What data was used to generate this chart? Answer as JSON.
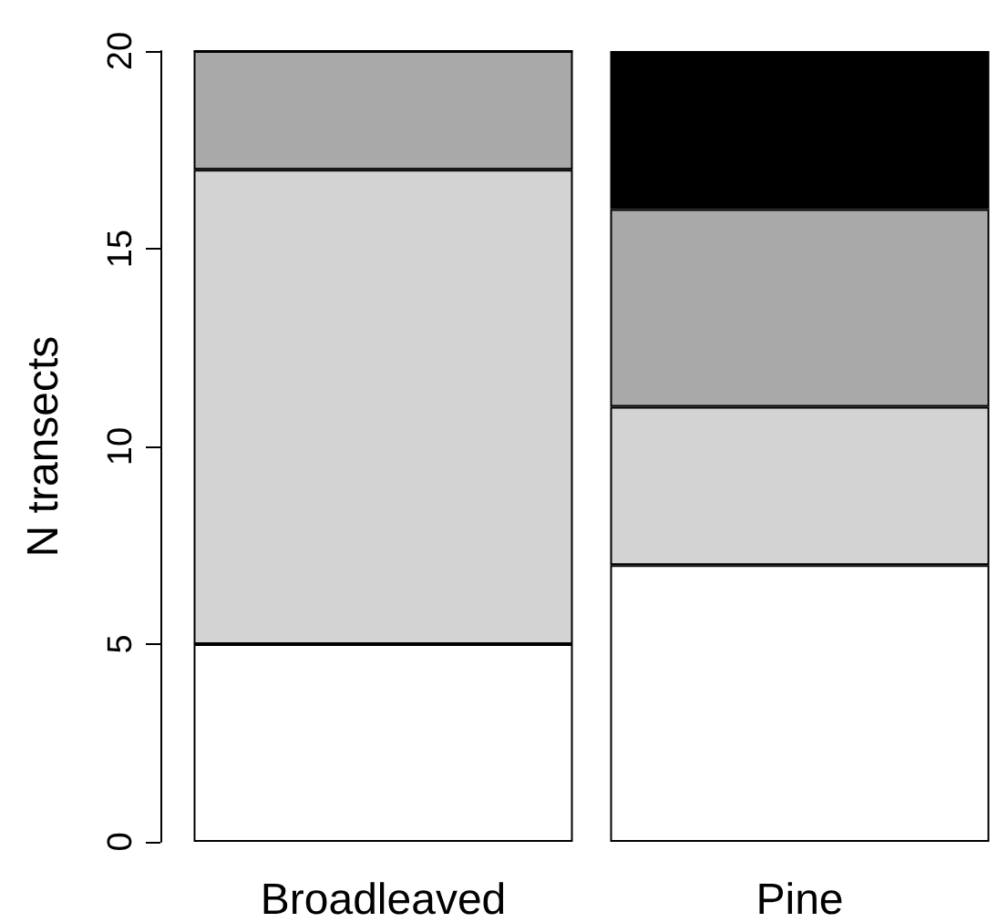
{
  "chart_data": {
    "type": "bar",
    "stacked": true,
    "ylabel": "N transects",
    "categories": [
      "Broadleaved",
      "Pine"
    ],
    "series": [
      {
        "color": "#ffffff",
        "values": [
          5,
          7
        ]
      },
      {
        "color": "#d3d3d3",
        "values": [
          12,
          4
        ]
      },
      {
        "color": "#a9a9a9",
        "values": [
          3,
          5
        ]
      },
      {
        "color": "#000000",
        "values": [
          0,
          4
        ]
      }
    ],
    "ylim": [
      0,
      20
    ],
    "yticks": [
      0,
      5,
      10,
      15,
      20
    ],
    "grid": false
  }
}
